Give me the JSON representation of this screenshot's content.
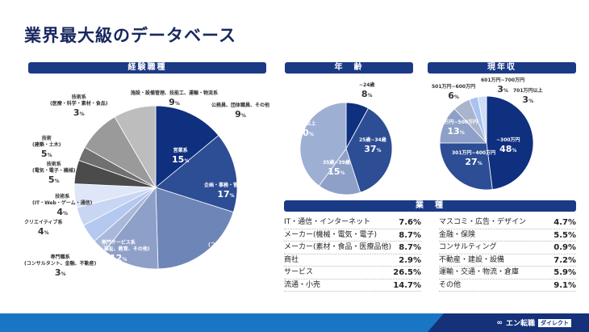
{
  "title": "業界最大級のデータベース",
  "sections": {
    "job": "経験職種",
    "age": "年　齢",
    "income": "現年収",
    "industry": "業　種"
  },
  "chart_data": [
    {
      "type": "pie",
      "title": "経験職種",
      "unit": "%",
      "slices": [
        {
          "label": "営業系",
          "sub": "",
          "value": 15,
          "color": "#0f2f7f"
        },
        {
          "label": "企画・事務・管理系",
          "sub": "",
          "value": 17,
          "color": "#2d4d94"
        },
        {
          "label": "販売・サービス系",
          "sub": "(ファッション、フード、小売)",
          "value": 21,
          "color": "#6e85b8"
        },
        {
          "label": "専門サービス系",
          "sub": "(医療、福祉、教育、その他)",
          "value": 12,
          "color": "#8ea0c8"
        },
        {
          "label": "専門職系",
          "sub": "(コンサルタント、金融、不動産)",
          "value": 3,
          "color": "#a9b8da"
        },
        {
          "label": "クリエイティブ系",
          "sub": "",
          "value": 4,
          "color": "#b4c8f0"
        },
        {
          "label": "技術系",
          "sub": "(IT・Web・ゲーム・通信)",
          "value": 4,
          "color": "#c8d6f3"
        },
        {
          "label": "技術系",
          "sub": "(電気・電子・機械)",
          "value": 5,
          "color": "#dfe6f7"
        },
        {
          "label": "技術",
          "sub": "(建築・土木)",
          "value": 5,
          "color": "#4b4b4b"
        },
        {
          "label": "技術系",
          "sub": "(医療・科学・素材・食品)",
          "value": 3,
          "color": "#707070"
        },
        {
          "label": "施設・設備管理、技能工、運輸・物流系",
          "sub": "",
          "value": 9,
          "color": "#9a9a9a"
        },
        {
          "label": "公務員、団体職員、その他",
          "sub": "",
          "value": 9,
          "color": "#bdbdbd"
        }
      ]
    },
    {
      "type": "pie",
      "title": "年齢",
      "unit": "%",
      "slices": [
        {
          "label": "~24歳",
          "value": 8,
          "color": "#0f2f7f"
        },
        {
          "label": "25歳~34歳",
          "value": 37,
          "color": "#2d4d94"
        },
        {
          "label": "35歳~39歳",
          "value": 15,
          "color": "#8ea0c8"
        },
        {
          "label": "40歳以上",
          "value": 40,
          "color": "#9eafd4"
        }
      ]
    },
    {
      "type": "pie",
      "title": "現年収",
      "unit": "%",
      "slices": [
        {
          "label": "~300万円",
          "value": 48,
          "color": "#0f2f7f"
        },
        {
          "label": "301万円~400万円",
          "value": 27,
          "color": "#2d4d94"
        },
        {
          "label": "401万円~500万円",
          "value": 13,
          "color": "#8ea0c8"
        },
        {
          "label": "501万円~600万円",
          "value": 6,
          "color": "#a9b5cc"
        },
        {
          "label": "601万円~700万円",
          "value": 3,
          "color": "#a9c2f0"
        },
        {
          "label": "701万円以上",
          "value": 3,
          "color": "#cfdcf7"
        }
      ]
    },
    {
      "type": "table",
      "title": "業種",
      "rows": [
        [
          "IT・通信・インターネット",
          "7.6%"
        ],
        [
          "メーカー(機械・電気・電子)",
          "8.7%"
        ],
        [
          "メーカー(素材・食品・医療品他)",
          "8.7%"
        ],
        [
          "商社",
          "2.9%"
        ],
        [
          "サービス",
          "26.5%"
        ],
        [
          "流通・小売",
          "14.7%"
        ],
        [
          "マスコミ・広告・デザイン",
          "4.7%"
        ],
        [
          "金融・保険",
          "5.5%"
        ],
        [
          "コンサルティング",
          "0.9%"
        ],
        [
          "不動産・建設・設備",
          "7.2%"
        ],
        [
          "運輸・交通・物流・倉庫",
          "5.9%"
        ],
        [
          "その他",
          "9.1%"
        ]
      ]
    }
  ],
  "footer": {
    "brand": "エン転職",
    "sub": "ダイレクト"
  }
}
